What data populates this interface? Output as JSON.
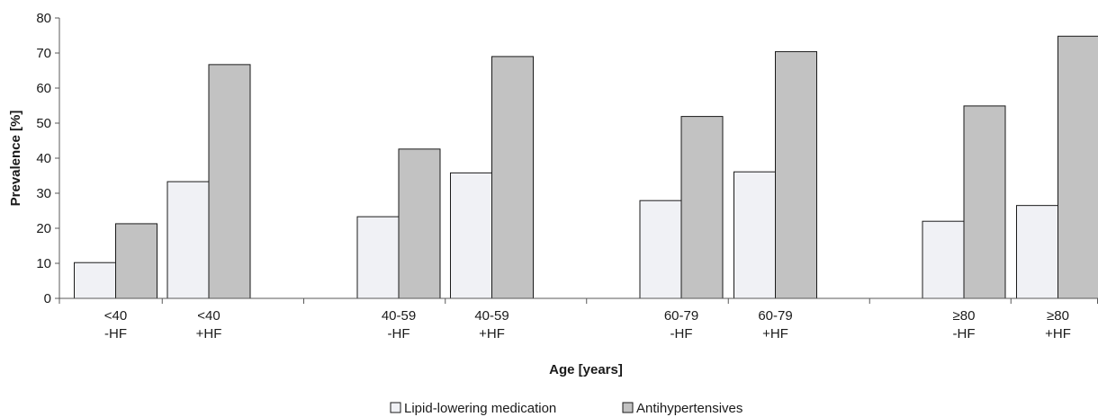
{
  "chart_data": {
    "type": "bar",
    "title": "",
    "xlabel": "Age [years]",
    "ylabel": "Prevalence [%]",
    "ylim": [
      0,
      80
    ],
    "yticks": [
      "0",
      "10",
      "20",
      "30",
      "40",
      "50",
      "60",
      "70",
      "80"
    ],
    "grid": false,
    "legend_position": "bottom",
    "categories": [
      {
        "line1": "<40",
        "line2": "-HF"
      },
      {
        "line1": "<40",
        "line2": "+HF"
      },
      {
        "line1": "40-59",
        "line2": "-HF"
      },
      {
        "line1": "40-59",
        "line2": "+HF"
      },
      {
        "line1": "60-79",
        "line2": "-HF"
      },
      {
        "line1": "60-79",
        "line2": "+HF"
      },
      {
        "line1": "≥80",
        "line2": "-HF"
      },
      {
        "line1": "≥80",
        "line2": "+HF"
      }
    ],
    "series": [
      {
        "name": "Lipid-lowering medication",
        "color": "#f0f1f5",
        "values": [
          10.2,
          33.3,
          23.3,
          35.8,
          27.9,
          36.1,
          22.0,
          26.5
        ]
      },
      {
        "name": "Antihypertensives",
        "color": "#c2c2c2",
        "values": [
          21.3,
          66.7,
          42.6,
          69.0,
          51.9,
          70.4,
          54.9,
          74.8
        ]
      }
    ]
  }
}
